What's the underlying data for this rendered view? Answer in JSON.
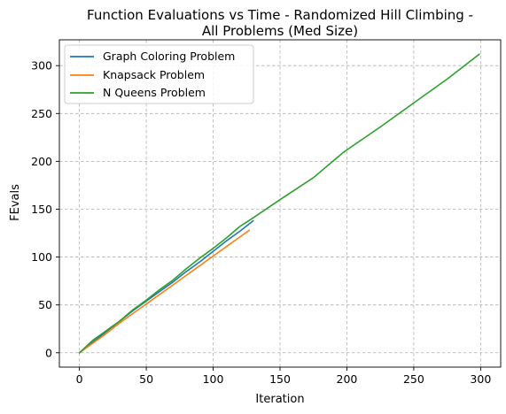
{
  "chart_data": {
    "type": "line",
    "title_lines": [
      "Function Evaluations vs Time - Randomized Hill Climbing -",
      "All Problems (Med Size)"
    ],
    "xlabel": "Iteration",
    "ylabel": "FEvals",
    "xlim": [
      -15,
      315
    ],
    "ylim": [
      -15,
      327
    ],
    "xticks": [
      0,
      50,
      100,
      150,
      200,
      250,
      300
    ],
    "yticks": [
      0,
      50,
      100,
      150,
      200,
      250,
      300
    ],
    "grid": true,
    "legend_position": "top-left",
    "series": [
      {
        "name": "Graph Coloring Problem",
        "color": "#1f77b4",
        "x": [
          0,
          10,
          20,
          30,
          40,
          50,
          60,
          70,
          80,
          90,
          100,
          110,
          120,
          130
        ],
        "y": [
          0,
          11,
          22,
          33,
          44,
          54,
          64,
          74,
          85,
          95,
          106,
          117,
          127,
          138
        ]
      },
      {
        "name": "Knapsack Problem",
        "color": "#ff7f0e",
        "x": [
          0,
          10,
          20,
          30,
          40,
          50,
          60,
          70,
          80,
          90,
          100,
          110,
          120,
          127
        ],
        "y": [
          0,
          10,
          20,
          31,
          41,
          51,
          61,
          71,
          81,
          91,
          101,
          111,
          121,
          128
        ]
      },
      {
        "name": "N Queens Problem",
        "color": "#2ca02c",
        "x": [
          0,
          10,
          20,
          30,
          40,
          50,
          60,
          70,
          80,
          90,
          100,
          110,
          120,
          130,
          150,
          175,
          197,
          200,
          225,
          250,
          275,
          299
        ],
        "y": [
          0,
          13,
          23,
          33,
          45,
          55,
          66,
          76,
          88,
          99,
          109,
          120,
          132,
          141,
          160,
          183,
          209,
          212,
          236,
          261,
          286,
          312
        ]
      }
    ]
  }
}
